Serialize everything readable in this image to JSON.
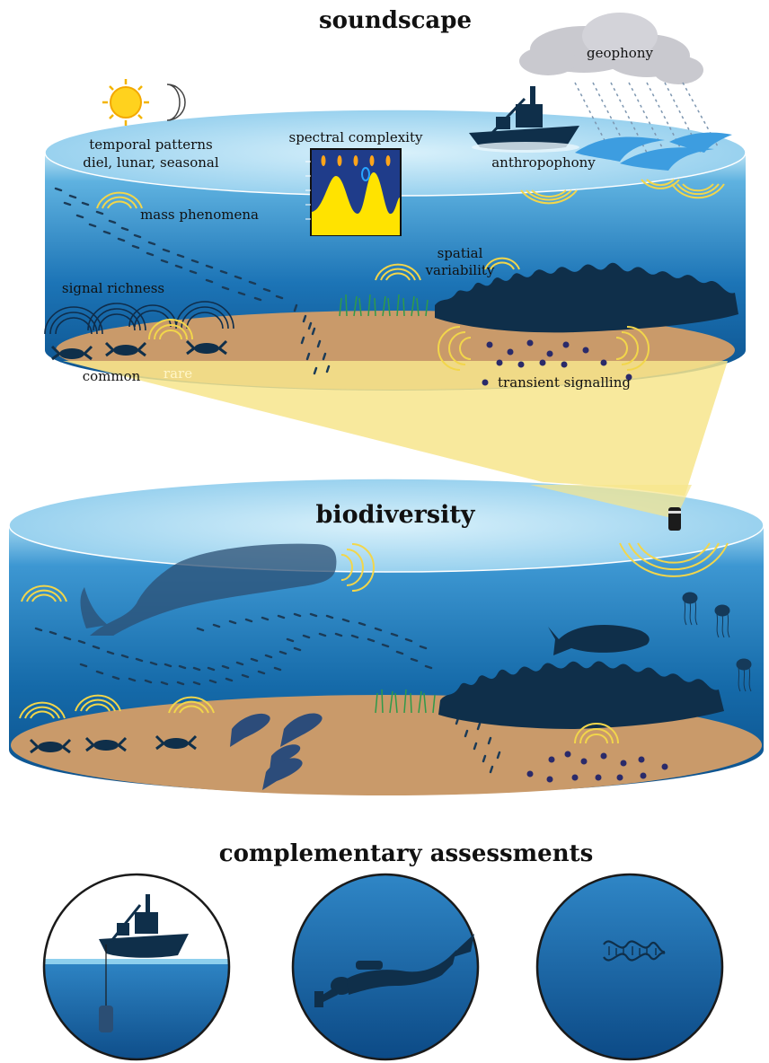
{
  "titles": {
    "soundscape": "soundscape",
    "biodiversity": "biodiversity",
    "complementary": "complementary assessments"
  },
  "labels": {
    "geophony": "geophony",
    "temporal_line1": "temporal patterns",
    "temporal_line2": "diel, lunar, seasonal",
    "spectral": "spectral complexity",
    "anthropophony": "anthropophony",
    "mass": "mass phenomena",
    "spatial_line1": "spatial",
    "spatial_line2": "variability",
    "signal": "signal richness",
    "common": "common",
    "rare": "rare",
    "transient": "transient signalling"
  },
  "colors": {
    "water_top": "#8ed0ee",
    "water_deep": "#0d5a96",
    "sand": "#c99a6a",
    "beam": "#f7e58c",
    "sound_arc": "#f2d64b",
    "silhouette": "#0f2f4a"
  },
  "icons": [
    "sun-icon",
    "moon-icon",
    "cloud-icon",
    "rain-icon",
    "ship-icon",
    "spectrogram-icon",
    "hydrophone-icon",
    "whale-icon",
    "tuna-icon",
    "jellyfish-icon",
    "lobster-icon",
    "squid-icon",
    "urchin-icon",
    "fish-school-icon",
    "seagrass-icon",
    "coral-reef-icon",
    "diver-icon",
    "dna-icon"
  ]
}
